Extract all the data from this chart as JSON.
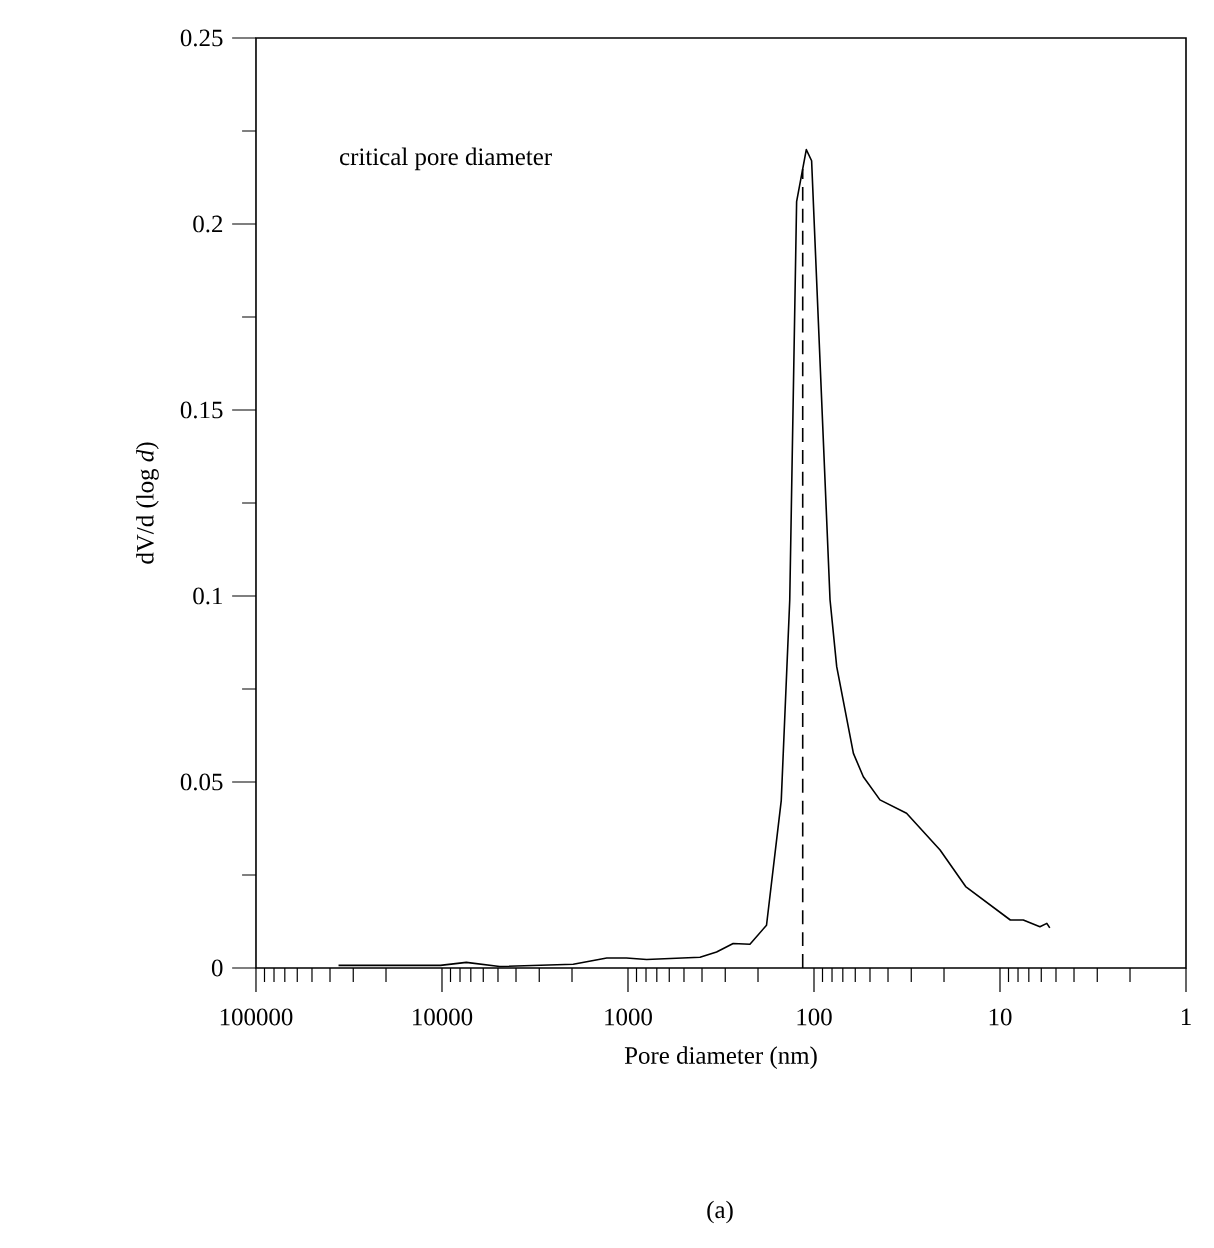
{
  "chart_data": {
    "type": "line",
    "xlabel": "Pore diameter (nm)",
    "ylabel": "dV/d (log *d*)",
    "annotations": [
      "critical pore diameter",
      "(a)"
    ],
    "log": "x",
    "xlim": [
      100000,
      1
    ],
    "ylim": [
      0,
      0.25
    ],
    "xticks": [
      100000,
      10000,
      1000,
      100,
      10,
      1
    ],
    "yticks": [
      0,
      0.05,
      0.1,
      0.15,
      0.2,
      0.25
    ],
    "grid": false,
    "marker": "none",
    "line_style": "solid",
    "ref_lines": [
      {
        "axis": "x",
        "value": 115,
        "line_style": "dashed",
        "color": "#000000"
      }
    ],
    "series": [
      {
        "color": "#000000",
        "x": [
          36000,
          10200,
          7400,
          4900,
          1970,
          1300,
          1020,
          794,
          410,
          334,
          272,
          221,
          180,
          150,
          135,
          124,
          110,
          103,
          82,
          75.5,
          61.4,
          54.3,
          44.2,
          31.8,
          21,
          15.3,
          8.8,
          7.5,
          6.1,
          5.6,
          5.4
        ],
        "values": [
          0.0007,
          0.0007,
          0.0015,
          0.0004,
          0.001,
          0.0027,
          0.0027,
          0.0023,
          0.0029,
          0.0043,
          0.0066,
          0.0064,
          0.0115,
          0.045,
          0.099,
          0.206,
          0.22,
          0.217,
          0.099,
          0.081,
          0.0577,
          0.0514,
          0.0452,
          0.0416,
          0.0317,
          0.0219,
          0.0129,
          0.0129,
          0.0111,
          0.012,
          0.0108
        ]
      }
    ]
  }
}
